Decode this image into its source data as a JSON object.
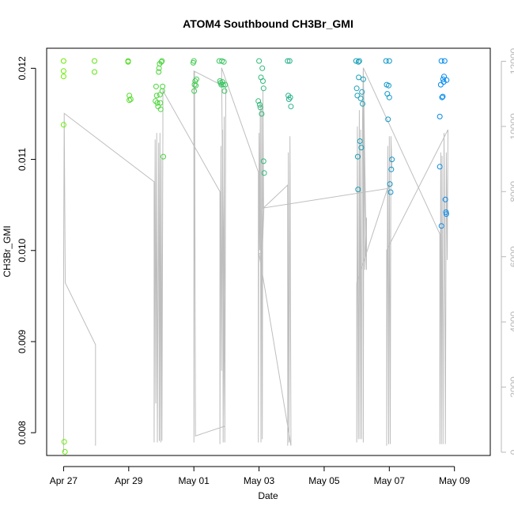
{
  "chart_data": {
    "type": "scatter",
    "title": "ATOM4 Southbound CH3Br_GMI",
    "xlabel": "Date",
    "ylabel": "CH3Br_GMI",
    "x_ticks": [
      {
        "label": "Apr 27",
        "day": 0
      },
      {
        "label": "Apr 29",
        "day": 2
      },
      {
        "label": "May 01",
        "day": 4
      },
      {
        "label": "May 03",
        "day": 6
      },
      {
        "label": "May 05",
        "day": 8
      },
      {
        "label": "May 07",
        "day": 10
      },
      {
        "label": "May 09",
        "day": 12
      }
    ],
    "y_ticks": [
      "0.008",
      "0.009",
      "0.010",
      "0.011",
      "0.012"
    ],
    "y2_ticks": [
      "0",
      "2000",
      "4000",
      "6000",
      "8000",
      "10000",
      "12000"
    ],
    "xlim_days": [
      -0.52,
      13.1
    ],
    "ylim": [
      0.00775,
      0.01222
    ],
    "y2lim": [
      -100,
      12400
    ],
    "scatter_series": [
      {
        "name": "ch3br_gmi",
        "color_start": "#66ee00",
        "color_end": "#0088ee",
        "points": [
          [
            0.0,
            0.01208
          ],
          [
            0.0,
            0.01197
          ],
          [
            0.0,
            0.01191
          ],
          [
            0.0,
            0.01138
          ],
          [
            0.02,
            0.0079
          ],
          [
            0.04,
            0.00779
          ],
          [
            0.95,
            0.01208
          ],
          [
            0.95,
            0.01196
          ],
          [
            1.98,
            0.01208
          ],
          [
            1.98,
            0.01207
          ],
          [
            2.02,
            0.0117
          ],
          [
            2.02,
            0.01165
          ],
          [
            2.06,
            0.01166
          ],
          [
            2.82,
            0.01164
          ],
          [
            2.84,
            0.0118
          ],
          [
            2.86,
            0.0117
          ],
          [
            2.88,
            0.01162
          ],
          [
            2.9,
            0.01158
          ],
          [
            2.92,
            0.01196
          ],
          [
            2.93,
            0.012
          ],
          [
            2.95,
            0.01205
          ],
          [
            2.96,
            0.01171
          ],
          [
            2.97,
            0.01162
          ],
          [
            2.98,
            0.01155
          ],
          [
            3.0,
            0.01207
          ],
          [
            3.02,
            0.01208
          ],
          [
            3.03,
            0.01175
          ],
          [
            3.04,
            0.0118
          ],
          [
            3.06,
            0.01103
          ],
          [
            3.98,
            0.01206
          ],
          [
            4.0,
            0.01208
          ],
          [
            4.01,
            0.01175
          ],
          [
            4.02,
            0.01182
          ],
          [
            4.04,
            0.01186
          ],
          [
            4.06,
            0.01181
          ],
          [
            4.08,
            0.01188
          ],
          [
            4.78,
            0.01208
          ],
          [
            4.8,
            0.01186
          ],
          [
            4.82,
            0.01184
          ],
          [
            4.84,
            0.01182
          ],
          [
            4.86,
            0.01208
          ],
          [
            4.88,
            0.01185
          ],
          [
            4.9,
            0.01182
          ],
          [
            4.92,
            0.01207
          ],
          [
            4.94,
            0.01175
          ],
          [
            4.96,
            0.01182
          ],
          [
            5.98,
            0.01164
          ],
          [
            6.0,
            0.01208
          ],
          [
            6.02,
            0.0116
          ],
          [
            6.04,
            0.01157
          ],
          [
            6.06,
            0.0119
          ],
          [
            6.08,
            0.0115
          ],
          [
            6.1,
            0.012
          ],
          [
            6.12,
            0.01186
          ],
          [
            6.14,
            0.01098
          ],
          [
            6.16,
            0.01085
          ],
          [
            6.14,
            0.01178
          ],
          [
            6.88,
            0.01208
          ],
          [
            6.9,
            0.0117
          ],
          [
            6.92,
            0.01166
          ],
          [
            6.94,
            0.01208
          ],
          [
            6.96,
            0.01168
          ],
          [
            6.98,
            0.01158
          ],
          [
            8.98,
            0.01208
          ],
          [
            9.0,
            0.01178
          ],
          [
            9.02,
            0.0117
          ],
          [
            9.03,
            0.01103
          ],
          [
            9.04,
            0.01067
          ],
          [
            9.05,
            0.01207
          ],
          [
            9.06,
            0.0119
          ],
          [
            9.08,
            0.01208
          ],
          [
            9.1,
            0.0112
          ],
          [
            9.12,
            0.01167
          ],
          [
            9.14,
            0.01113
          ],
          [
            9.16,
            0.01174
          ],
          [
            9.18,
            0.01161
          ],
          [
            9.2,
            0.01188
          ],
          [
            9.9,
            0.01208
          ],
          [
            9.92,
            0.01182
          ],
          [
            9.94,
            0.01172
          ],
          [
            9.96,
            0.01144
          ],
          [
            9.98,
            0.01181
          ],
          [
            10.0,
            0.01168
          ],
          [
            10.0,
            0.01208
          ],
          [
            10.02,
            0.01073
          ],
          [
            10.04,
            0.01064
          ],
          [
            10.06,
            0.01089
          ],
          [
            10.08,
            0.011
          ],
          [
            11.55,
            0.01147
          ],
          [
            11.55,
            0.01092
          ],
          [
            11.58,
            0.01182
          ],
          [
            11.6,
            0.01208
          ],
          [
            11.62,
            0.01168
          ],
          [
            11.64,
            0.01169
          ],
          [
            11.65,
            0.01188
          ],
          [
            11.67,
            0.01185
          ],
          [
            11.68,
            0.01191
          ],
          [
            11.7,
            0.01208
          ],
          [
            11.72,
            0.01056
          ],
          [
            11.74,
            0.01042
          ],
          [
            11.75,
            0.0104
          ],
          [
            11.76,
            0.01187
          ],
          [
            11.6,
            0.01027
          ]
        ]
      }
    ],
    "line_series": [
      {
        "name": "secondary_axis_series",
        "color": "#bebebe",
        "points": [
          [
            0.0,
            0
          ],
          [
            0.0,
            5200
          ],
          [
            0.02,
            10400
          ],
          [
            0.05,
            5200
          ],
          [
            0.98,
            3300
          ],
          [
            0.98,
            200
          ],
          [
            0.98,
            3300
          ],
          [
            0.05,
            5200
          ],
          [
            0.02,
            10400
          ],
          [
            2.78,
            8300
          ],
          [
            2.78,
            300
          ],
          [
            2.81,
            9600
          ],
          [
            2.83,
            1500
          ],
          [
            2.86,
            9800
          ],
          [
            2.88,
            300
          ],
          [
            2.92,
            9500
          ],
          [
            2.94,
            350
          ],
          [
            2.96,
            9800
          ],
          [
            2.98,
            300
          ],
          [
            3.0,
            9000
          ],
          [
            3.02,
            350
          ],
          [
            3.05,
            10000
          ],
          [
            3.05,
            11100
          ],
          [
            4.8,
            8000
          ],
          [
            4.8,
            250
          ],
          [
            4.83,
            9400
          ],
          [
            4.85,
            2500
          ],
          [
            4.88,
            9900
          ],
          [
            4.9,
            300
          ],
          [
            4.93,
            10300
          ],
          [
            4.95,
            300
          ],
          [
            4.98,
            11200
          ],
          [
            4.0,
            11700
          ],
          [
            4.0,
            300
          ],
          [
            4.02,
            11700
          ],
          [
            4.05,
            500
          ],
          [
            4.95,
            800
          ],
          [
            4.85,
            11800
          ],
          [
            5.98,
            8600
          ],
          [
            5.98,
            300
          ],
          [
            6.0,
            9800
          ],
          [
            6.02,
            6200
          ],
          [
            6.04,
            10800
          ],
          [
            6.06,
            300
          ],
          [
            6.08,
            10600
          ],
          [
            6.1,
            400
          ],
          [
            6.12,
            11100
          ],
          [
            6.14,
            7500
          ],
          [
            6.88,
            8200
          ],
          [
            6.88,
            200
          ],
          [
            6.9,
            9200
          ],
          [
            6.92,
            300
          ],
          [
            6.95,
            9700
          ],
          [
            6.98,
            500
          ],
          [
            6.98,
            200
          ],
          [
            6.0,
            6100
          ],
          [
            6.1,
            6100
          ],
          [
            6.15,
            7500
          ],
          [
            9.98,
            8100
          ],
          [
            9.98,
            8200
          ],
          [
            9.0,
            5200
          ],
          [
            9.0,
            300
          ],
          [
            9.02,
            10000
          ],
          [
            9.05,
            400
          ],
          [
            9.08,
            10500
          ],
          [
            9.1,
            400
          ],
          [
            9.12,
            9900
          ],
          [
            9.15,
            400
          ],
          [
            9.18,
            10300
          ],
          [
            9.2,
            11800
          ],
          [
            9.2,
            300
          ],
          [
            9.22,
            11100
          ],
          [
            9.25,
            5600
          ],
          [
            9.3,
            7200
          ],
          [
            9.3,
            5600
          ],
          [
            9.2,
            11800
          ],
          [
            11.55,
            6700
          ],
          [
            11.55,
            250
          ],
          [
            11.58,
            9200
          ],
          [
            11.6,
            250
          ],
          [
            11.62,
            9100
          ],
          [
            11.65,
            250
          ],
          [
            11.68,
            9800
          ],
          [
            11.7,
            6900
          ],
          [
            11.72,
            250
          ],
          [
            11.75,
            9200
          ],
          [
            11.78,
            5900
          ],
          [
            11.8,
            9900
          ],
          [
            9.92,
            6200
          ],
          [
            9.92,
            200
          ],
          [
            9.95,
            9400
          ],
          [
            9.98,
            250
          ],
          [
            10.0,
            9700
          ],
          [
            10.03,
            250
          ],
          [
            10.05,
            9700
          ],
          [
            10.08,
            8700
          ]
        ]
      }
    ]
  }
}
